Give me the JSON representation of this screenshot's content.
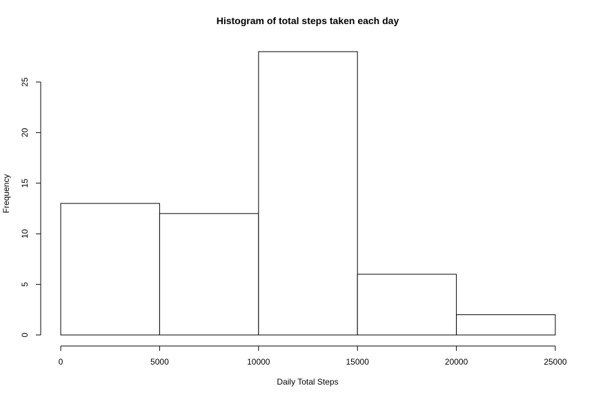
{
  "chart_data": {
    "type": "bar",
    "title": "Histogram of total steps taken each day",
    "xlabel": "Daily Total Steps",
    "ylabel": "Frequency",
    "bins": [
      {
        "from": 0,
        "to": 5000,
        "count": 13
      },
      {
        "from": 5000,
        "to": 10000,
        "count": 12
      },
      {
        "from": 10000,
        "to": 15000,
        "count": 28
      },
      {
        "from": 15000,
        "to": 20000,
        "count": 6
      },
      {
        "from": 20000,
        "to": 25000,
        "count": 2
      }
    ],
    "xlim": [
      0,
      25000
    ],
    "ylim": [
      0,
      28
    ],
    "x_ticks": [
      0,
      5000,
      10000,
      15000,
      20000,
      25000
    ],
    "y_ticks": [
      0,
      5,
      10,
      15,
      20,
      25
    ],
    "grid": false,
    "legend": "none",
    "colors": {
      "bar_fill": "#ffffff",
      "bar_stroke": "#000000"
    }
  }
}
